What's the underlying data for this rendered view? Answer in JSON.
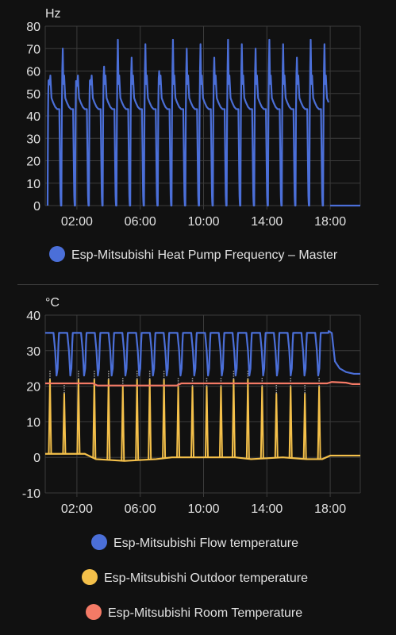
{
  "colors": {
    "frequency": "#4b6fd8",
    "flow": "#4b6fd8",
    "outdoor": "#f4c04a",
    "room": "#f47a66",
    "grid": "#3c3c3c",
    "text": "#e1e1e1",
    "background": "#111111",
    "icon_gray": "#9e9e9e"
  },
  "chart_data": [
    {
      "type": "line",
      "unit": "Hz",
      "ylim": [
        0,
        80
      ],
      "yticks": [
        "80",
        "70",
        "60",
        "50",
        "40",
        "30",
        "20",
        "10",
        "0"
      ],
      "x_range_hours": [
        0.0,
        19.9
      ],
      "xticks": [
        {
          "label": "02:00",
          "hour": 2
        },
        {
          "label": "06:00",
          "hour": 6
        },
        {
          "label": "10:00",
          "hour": 10
        },
        {
          "label": "14:00",
          "hour": 14
        },
        {
          "label": "18:00",
          "hour": 18
        }
      ],
      "grid": true,
      "legend_position": "bottom",
      "series": [
        {
          "name": "Esp-Mitsubishi Heat Pump Frequency – Master",
          "color": "#4b6fd8",
          "cycle": {
            "start_hour": 0.15,
            "end_hour": 17.9,
            "period_hours": 0.87,
            "profile": [
              [
                0.0,
                0
              ],
              [
                0.03,
                40
              ],
              [
                0.06,
                56
              ],
              [
                0.12,
                52
              ],
              [
                0.2,
                58
              ],
              [
                0.28,
                48
              ],
              [
                0.4,
                46
              ],
              [
                0.55,
                44
              ],
              [
                0.7,
                43
              ],
              [
                0.85,
                43
              ],
              [
                0.93,
                5
              ],
              [
                0.96,
                0
              ],
              [
                1.0,
                0
              ]
            ],
            "first_peak": 70,
            "peaks": [
              56,
              70,
              54,
              56,
              62,
              74,
              66,
              72,
              60,
              74,
              70,
              72,
              66,
              74,
              72,
              70,
              74,
              72,
              66,
              74,
              72
            ]
          },
          "tail": {
            "start_hour": 18.0,
            "end_hour": 19.9,
            "value": 0
          }
        }
      ]
    },
    {
      "type": "line",
      "unit": "°C",
      "ylim": [
        -10,
        40
      ],
      "yticks": [
        "40",
        "30",
        "20",
        "10",
        "0",
        "-10"
      ],
      "x_range_hours": [
        0.0,
        19.9
      ],
      "xticks": [
        {
          "label": "02:00",
          "hour": 2
        },
        {
          "label": "06:00",
          "hour": 6
        },
        {
          "label": "10:00",
          "hour": 10
        },
        {
          "label": "14:00",
          "hour": 14
        },
        {
          "label": "18:00",
          "hour": 18
        }
      ],
      "grid": true,
      "legend_position": "bottom",
      "series": [
        {
          "name": "Esp-Mitsubishi Flow temperature",
          "color": "#4b6fd8",
          "cycle": {
            "start_hour": 0.0,
            "end_hour": 17.9,
            "period_hours": 0.87,
            "profile": [
              [
                0.0,
                35
              ],
              [
                0.6,
                35
              ],
              [
                0.72,
                30
              ],
              [
                0.82,
                23
              ],
              [
                0.9,
                25
              ],
              [
                0.96,
                32
              ],
              [
                1.0,
                35
              ]
            ]
          },
          "tail": [
            [
              17.9,
              35.5
            ],
            [
              18.1,
              35
            ],
            [
              18.3,
              27
            ],
            [
              18.6,
              25
            ],
            [
              19.0,
              24
            ],
            [
              19.5,
              23.5
            ],
            [
              19.9,
              23.5
            ]
          ]
        },
        {
          "name": "Esp-Mitsubishi Outdoor temperature",
          "color": "#f4c04a",
          "baseline": [
            [
              0.0,
              1
            ],
            [
              2.5,
              1
            ],
            [
              3.2,
              -0.5
            ],
            [
              5.0,
              -1
            ],
            [
              7.0,
              -0.5
            ],
            [
              8.0,
              0
            ],
            [
              12.0,
              0
            ],
            [
              13.0,
              -0.5
            ],
            [
              15.0,
              0
            ],
            [
              16.5,
              -0.5
            ],
            [
              17.5,
              -0.5
            ],
            [
              18.0,
              0.5
            ],
            [
              19.9,
              0.5
            ]
          ],
          "spikes": [
            {
              "hour": 0.3,
              "value": 22
            },
            {
              "hour": 1.2,
              "value": 18
            },
            {
              "hour": 2.1,
              "value": 22
            },
            {
              "hour": 3.1,
              "value": 22
            },
            {
              "hour": 4.0,
              "value": 22
            },
            {
              "hour": 4.9,
              "value": 20
            },
            {
              "hour": 5.8,
              "value": 22
            },
            {
              "hour": 6.6,
              "value": 22
            },
            {
              "hour": 7.5,
              "value": 22
            },
            {
              "hour": 8.4,
              "value": 20
            },
            {
              "hour": 9.3,
              "value": 20
            },
            {
              "hour": 10.2,
              "value": 20
            },
            {
              "hour": 11.1,
              "value": 20
            },
            {
              "hour": 11.9,
              "value": 22
            },
            {
              "hour": 12.8,
              "value": 22
            },
            {
              "hour": 13.7,
              "value": 20
            },
            {
              "hour": 14.6,
              "value": 18
            },
            {
              "hour": 15.5,
              "value": 20
            },
            {
              "hour": 16.4,
              "value": 18
            },
            {
              "hour": 17.3,
              "value": 20
            }
          ]
        },
        {
          "name": "Esp-Mitsubishi Room Temperature",
          "color": "#f47a66",
          "points": [
            [
              0.0,
              20.8
            ],
            [
              3.0,
              20.8
            ],
            [
              3.3,
              20.2
            ],
            [
              8.3,
              20.2
            ],
            [
              8.6,
              20.8
            ],
            [
              17.8,
              20.8
            ],
            [
              18.1,
              21.2
            ],
            [
              19.0,
              21.0
            ],
            [
              19.4,
              20.6
            ],
            [
              19.9,
              20.6
            ]
          ]
        }
      ]
    }
  ]
}
